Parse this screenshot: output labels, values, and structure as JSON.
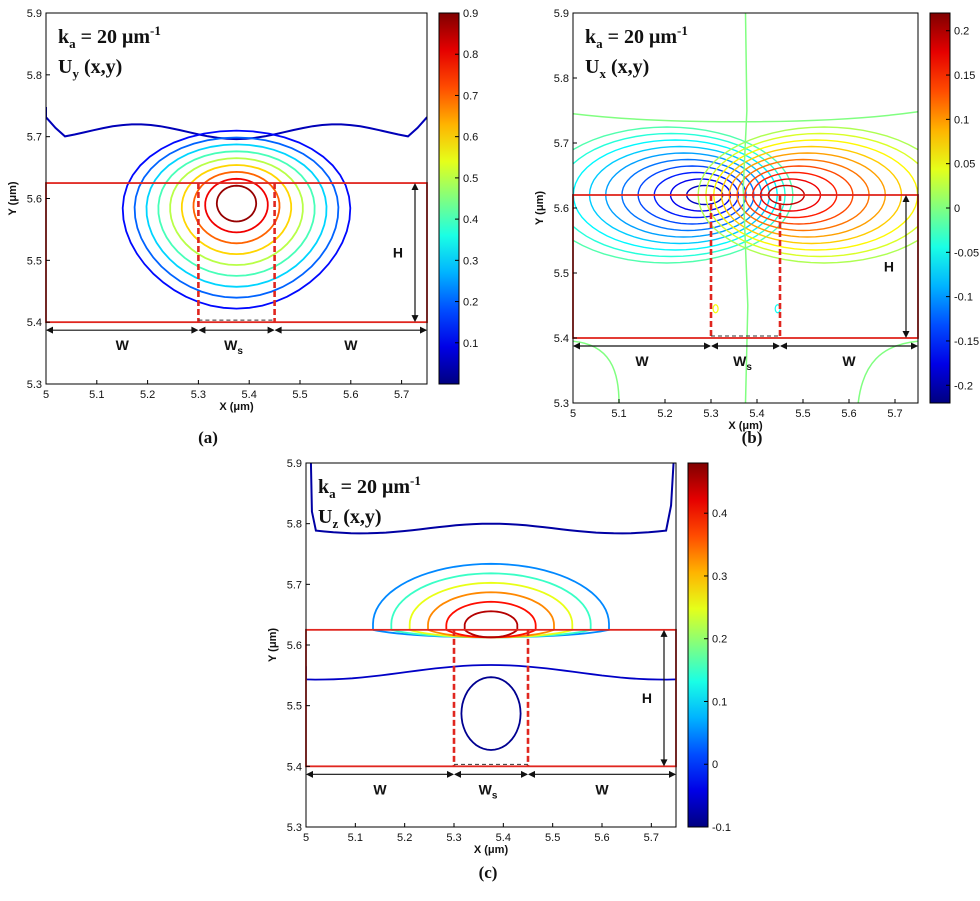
{
  "chart_data": [
    {
      "panel": "(a)",
      "type": "contour",
      "field": "U",
      "field_sub": "y",
      "field_args": " (x,y)",
      "k_text": "k",
      "k_sub": "a",
      "k_value": " = 20 μm",
      "k_sup": "-1",
      "xlabel": "X (μm)",
      "ylabel": "Y (μm)",
      "xlim": [
        5.0,
        5.75
      ],
      "ylim": [
        5.3,
        5.9
      ],
      "xticks": [
        "5",
        "5.1",
        "5.2",
        "5.3",
        "5.4",
        "5.5",
        "5.6",
        "5.7"
      ],
      "yticks": [
        "5.3",
        "5.4",
        "5.5",
        "5.6",
        "5.7",
        "5.8",
        "5.9"
      ],
      "colorbar": {
        "min": 0.0,
        "max": 0.9,
        "ticks": [
          "0.1",
          "0.2",
          "0.3",
          "0.4",
          "0.5",
          "0.6",
          "0.7",
          "0.8",
          "0.9"
        ]
      },
      "center": [
        5.375,
        5.595
      ],
      "levels": [
        0.05,
        0.12,
        0.2,
        0.3,
        0.4,
        0.5,
        0.6,
        0.7,
        0.8,
        0.88
      ],
      "annotations": {
        "W_left": "W",
        "Ws": "W",
        "Ws_sub": "s",
        "W_right": "W",
        "H": "H"
      },
      "structure": {
        "surface_y": 5.625,
        "base_y": 5.4,
        "ws_left": 5.3,
        "ws_right": 5.45
      }
    },
    {
      "panel": "(b)",
      "type": "contour",
      "field": "U",
      "field_sub": "x",
      "field_args": " (x,y)",
      "k_text": "k",
      "k_sub": "a",
      "k_value": " = 20 μm",
      "k_sup": "-1",
      "xlabel": "X (μm)",
      "ylabel": "Y (μm)",
      "xlim": [
        5.0,
        5.75
      ],
      "ylim": [
        5.3,
        5.9
      ],
      "xticks": [
        "5",
        "5.1",
        "5.2",
        "5.3",
        "5.4",
        "5.5",
        "5.6",
        "5.7"
      ],
      "yticks": [
        "5.3",
        "5.4",
        "5.5",
        "5.6",
        "5.7",
        "5.8",
        "5.9"
      ],
      "colorbar": {
        "min": -0.22,
        "max": 0.22,
        "ticks": [
          "-0.2",
          "-0.15",
          "-0.1",
          "-0.05",
          "0",
          "0.05",
          "0.1",
          "0.15",
          "0.2"
        ]
      },
      "lobes": [
        {
          "center": [
            5.3,
            5.62
          ],
          "sign": "negative"
        },
        {
          "center": [
            5.45,
            5.62
          ],
          "sign": "positive"
        }
      ],
      "levels": [
        -0.2,
        -0.16,
        -0.12,
        -0.08,
        -0.04,
        0.0,
        0.04,
        0.08,
        0.12,
        0.16,
        0.2
      ],
      "annotations": {
        "W_left": "W",
        "Ws": "W",
        "Ws_sub": "s",
        "W_right": "W",
        "H": "H"
      },
      "structure": {
        "surface_y": 5.62,
        "base_y": 5.4,
        "ws_left": 5.3,
        "ws_right": 5.45
      }
    },
    {
      "panel": "(c)",
      "type": "contour",
      "field": "U",
      "field_sub": "z",
      "field_args": " (x,y)",
      "k_text": "k",
      "k_sub": "a",
      "k_value": " = 20 μm",
      "k_sup": "-1",
      "xlabel": "X (μm)",
      "ylabel": "Y (μm)",
      "xlim": [
        5.0,
        5.75
      ],
      "ylim": [
        5.3,
        5.9
      ],
      "xticks": [
        "5",
        "5.1",
        "5.2",
        "5.3",
        "5.4",
        "5.5",
        "5.6",
        "5.7"
      ],
      "yticks": [
        "5.3",
        "5.4",
        "5.5",
        "5.6",
        "5.7",
        "5.8",
        "5.9"
      ],
      "colorbar": {
        "min": -0.1,
        "max": 0.48,
        "ticks": [
          "-0.1",
          "0",
          "0.1",
          "0.2",
          "0.3",
          "0.4"
        ]
      },
      "center": [
        5.375,
        5.63
      ],
      "levels": [
        0.05,
        0.15,
        0.25,
        0.33,
        0.4,
        0.45
      ],
      "annotations": {
        "W_left": "W",
        "Ws": "W",
        "Ws_sub": "s",
        "W_right": "W",
        "H": "H"
      },
      "structure": {
        "surface_y": 5.625,
        "base_y": 5.4,
        "ws_left": 5.3,
        "ws_right": 5.45
      }
    }
  ],
  "captions": [
    "(a)",
    "(b)",
    "(c)"
  ],
  "colors": {
    "structure": "#e0261f",
    "text": "#111111",
    "frame": "#000000"
  }
}
